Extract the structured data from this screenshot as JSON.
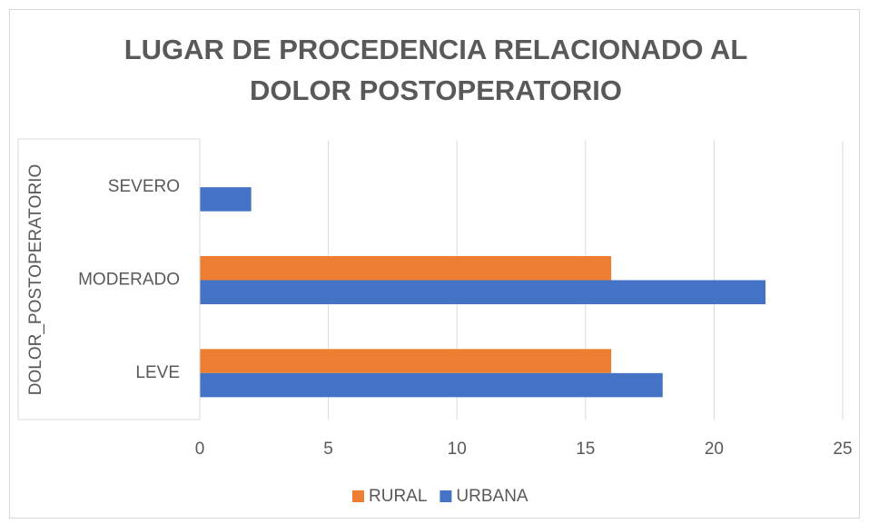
{
  "chart_data": {
    "type": "hbar",
    "title": [
      "LUGAR DE PROCEDENCIA RELACIONADO AL",
      "DOLOR POSTOPERATORIO"
    ],
    "y_label": "DOLOR_POSTOPERATORIO",
    "categories": [
      "LEVE",
      "MODERADO",
      "SEVERO"
    ],
    "series": [
      {
        "name": "RURAL",
        "color": "#ed7d31",
        "values": [
          16,
          16,
          0
        ]
      },
      {
        "name": "URBANA",
        "color": "#4472c4",
        "values": [
          18,
          22,
          2
        ]
      }
    ],
    "xlim": [
      0,
      25
    ],
    "xticks": [
      0,
      5,
      10,
      15,
      20,
      25
    ],
    "grid": true,
    "legend": "bottom"
  }
}
